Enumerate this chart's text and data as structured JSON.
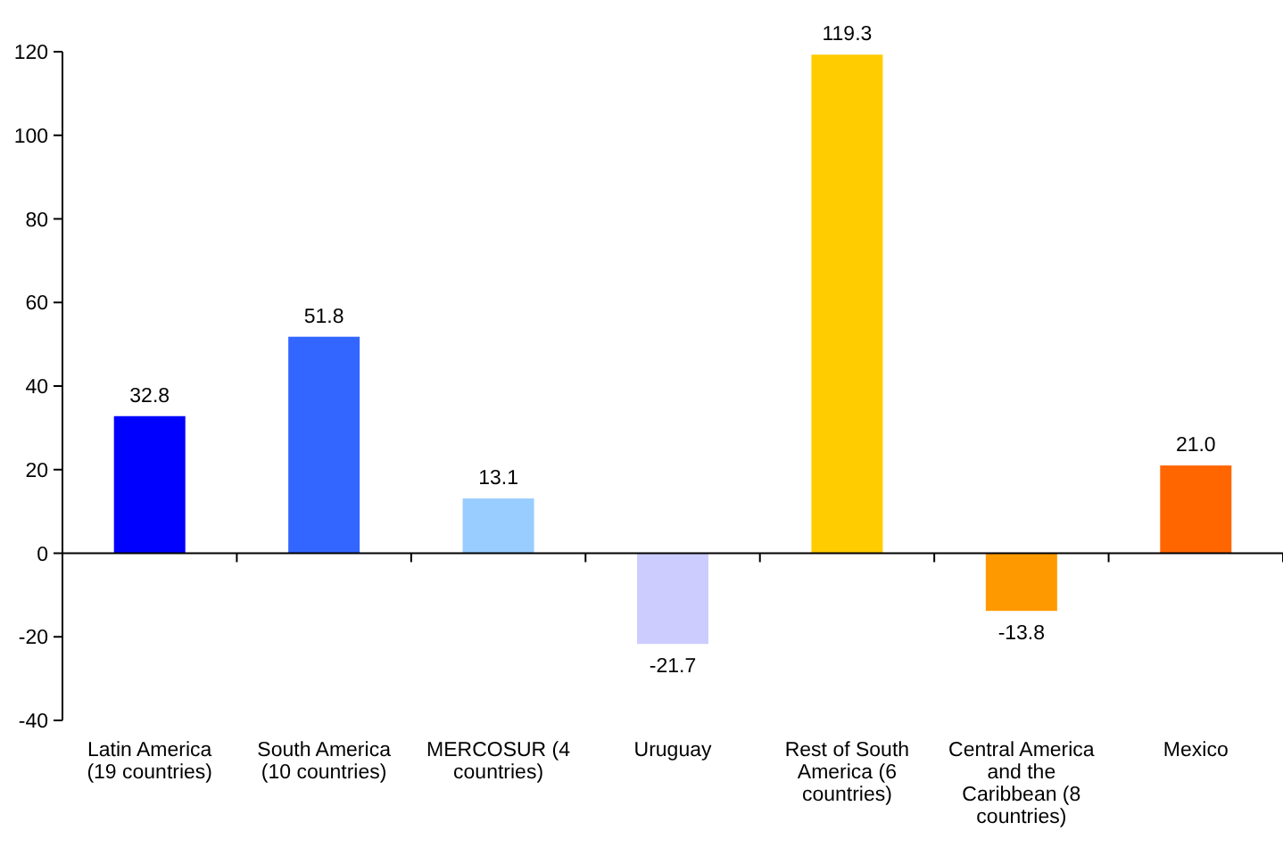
{
  "chart_data": {
    "type": "bar",
    "categories": [
      "Latin America (19 countries)",
      "South America (10 countries)",
      "MERCOSUR (4 countries)",
      "Uruguay",
      "Rest of South America (6 countries)",
      "Central America and the Caribbean (8 countries)",
      "Mexico"
    ],
    "values": [
      32.8,
      51.8,
      13.1,
      -21.7,
      119.3,
      -13.8,
      21.0
    ],
    "value_labels": [
      "32.8",
      "51.8",
      "13.1",
      "-21.7",
      "119.3",
      "-13.8",
      "21.0"
    ],
    "colors": [
      "#0000ff",
      "#3366ff",
      "#99ccff",
      "#ccccff",
      "#ffcc00",
      "#ff9900",
      "#ff6600"
    ],
    "ylim": [
      -40,
      120
    ],
    "yticks": [
      -40,
      -20,
      0,
      20,
      40,
      60,
      80,
      100,
      120
    ]
  }
}
